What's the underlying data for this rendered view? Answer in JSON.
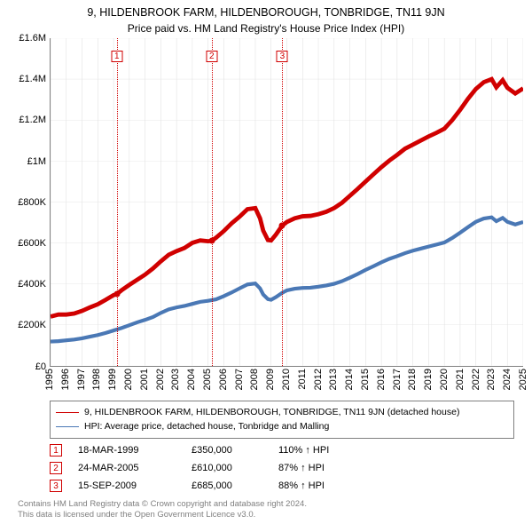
{
  "chart": {
    "title": "9, HILDENBROOK FARM, HILDENBOROUGH, TONBRIDGE, TN11 9JN",
    "subtitle": "Price paid vs. HM Land Registry's House Price Index (HPI)",
    "background_color": "#ffffff",
    "grid_color": "#e0e0e0",
    "axis_color": "#808080",
    "y": {
      "min": 0,
      "max": 1600000,
      "ticks": [
        {
          "v": 0,
          "label": "£0"
        },
        {
          "v": 200000,
          "label": "£200K"
        },
        {
          "v": 400000,
          "label": "£400K"
        },
        {
          "v": 600000,
          "label": "£600K"
        },
        {
          "v": 800000,
          "label": "£800K"
        },
        {
          "v": 1000000,
          "label": "£1M"
        },
        {
          "v": 1200000,
          "label": "£1.2M"
        },
        {
          "v": 1400000,
          "label": "£1.4M"
        },
        {
          "v": 1600000,
          "label": "£1.6M"
        }
      ]
    },
    "x": {
      "min": 1995,
      "max": 2025,
      "ticks": [
        1995,
        1996,
        1997,
        1998,
        1999,
        2000,
        2001,
        2002,
        2003,
        2004,
        2005,
        2006,
        2007,
        2008,
        2009,
        2010,
        2011,
        2012,
        2013,
        2014,
        2015,
        2016,
        2017,
        2018,
        2019,
        2020,
        2021,
        2022,
        2023,
        2024,
        2025
      ]
    },
    "series": [
      {
        "name": "9, HILDENBROOK FARM, HILDENBOROUGH, TONBRIDGE, TN11 9JN (detached house)",
        "color": "#d00000",
        "line_width": 1.5,
        "data": [
          [
            1995,
            240000
          ],
          [
            1995.5,
            250000
          ],
          [
            1996,
            250000
          ],
          [
            1996.5,
            255000
          ],
          [
            1997,
            268000
          ],
          [
            1997.5,
            285000
          ],
          [
            1998,
            300000
          ],
          [
            1998.5,
            322000
          ],
          [
            1999,
            345000
          ],
          [
            1999.21,
            350000
          ],
          [
            1999.5,
            368000
          ],
          [
            2000,
            395000
          ],
          [
            2000.5,
            420000
          ],
          [
            2001,
            445000
          ],
          [
            2001.5,
            475000
          ],
          [
            2002,
            510000
          ],
          [
            2002.5,
            542000
          ],
          [
            2003,
            560000
          ],
          [
            2003.5,
            575000
          ],
          [
            2004,
            600000
          ],
          [
            2004.5,
            612000
          ],
          [
            2005,
            608000
          ],
          [
            2005.23,
            610000
          ],
          [
            2005.5,
            625000
          ],
          [
            2006,
            658000
          ],
          [
            2006.5,
            696000
          ],
          [
            2007,
            728000
          ],
          [
            2007.5,
            765000
          ],
          [
            2008,
            770000
          ],
          [
            2008.3,
            720000
          ],
          [
            2008.5,
            660000
          ],
          [
            2008.8,
            614000
          ],
          [
            2009,
            612000
          ],
          [
            2009.3,
            640000
          ],
          [
            2009.71,
            685000
          ],
          [
            2010,
            702000
          ],
          [
            2010.5,
            720000
          ],
          [
            2011,
            730000
          ],
          [
            2011.5,
            732000
          ],
          [
            2012,
            740000
          ],
          [
            2012.5,
            752000
          ],
          [
            2013,
            770000
          ],
          [
            2013.5,
            796000
          ],
          [
            2014,
            830000
          ],
          [
            2014.5,
            864000
          ],
          [
            2015,
            900000
          ],
          [
            2015.5,
            935000
          ],
          [
            2016,
            970000
          ],
          [
            2016.5,
            1002000
          ],
          [
            2017,
            1030000
          ],
          [
            2017.5,
            1060000
          ],
          [
            2018,
            1080000
          ],
          [
            2018.5,
            1100000
          ],
          [
            2019,
            1120000
          ],
          [
            2019.5,
            1138000
          ],
          [
            2020,
            1158000
          ],
          [
            2020.5,
            1200000
          ],
          [
            2021,
            1250000
          ],
          [
            2021.5,
            1304000
          ],
          [
            2022,
            1352000
          ],
          [
            2022.5,
            1385000
          ],
          [
            2023,
            1400000
          ],
          [
            2023.3,
            1360000
          ],
          [
            2023.7,
            1395000
          ],
          [
            2024,
            1358000
          ],
          [
            2024.5,
            1330000
          ],
          [
            2025,
            1355000
          ]
        ]
      },
      {
        "name": "HPI: Average price, detached house, Tonbridge and Malling",
        "color": "#4a78b5",
        "line_width": 1.3,
        "data": [
          [
            1995,
            118000
          ],
          [
            1995.5,
            120000
          ],
          [
            1996,
            124000
          ],
          [
            1996.5,
            128000
          ],
          [
            1997,
            134000
          ],
          [
            1997.5,
            142000
          ],
          [
            1998,
            150000
          ],
          [
            1998.5,
            160000
          ],
          [
            1999,
            172000
          ],
          [
            1999.5,
            184000
          ],
          [
            2000,
            198000
          ],
          [
            2000.5,
            212000
          ],
          [
            2001,
            224000
          ],
          [
            2001.5,
            238000
          ],
          [
            2002,
            258000
          ],
          [
            2002.5,
            275000
          ],
          [
            2003,
            285000
          ],
          [
            2003.5,
            292000
          ],
          [
            2004,
            302000
          ],
          [
            2004.5,
            312000
          ],
          [
            2005,
            317000
          ],
          [
            2005.5,
            324000
          ],
          [
            2006,
            340000
          ],
          [
            2006.5,
            358000
          ],
          [
            2007,
            378000
          ],
          [
            2007.5,
            397000
          ],
          [
            2008,
            402000
          ],
          [
            2008.3,
            378000
          ],
          [
            2008.5,
            348000
          ],
          [
            2008.8,
            325000
          ],
          [
            2009,
            322000
          ],
          [
            2009.3,
            335000
          ],
          [
            2009.7,
            356000
          ],
          [
            2010,
            368000
          ],
          [
            2010.5,
            376000
          ],
          [
            2011,
            380000
          ],
          [
            2011.5,
            381000
          ],
          [
            2012,
            386000
          ],
          [
            2012.5,
            392000
          ],
          [
            2013,
            400000
          ],
          [
            2013.5,
            413000
          ],
          [
            2014,
            430000
          ],
          [
            2014.5,
            448000
          ],
          [
            2015,
            468000
          ],
          [
            2015.5,
            486000
          ],
          [
            2016,
            505000
          ],
          [
            2016.5,
            522000
          ],
          [
            2017,
            535000
          ],
          [
            2017.5,
            550000
          ],
          [
            2018,
            562000
          ],
          [
            2018.5,
            572000
          ],
          [
            2019,
            582000
          ],
          [
            2019.5,
            592000
          ],
          [
            2020,
            602000
          ],
          [
            2020.5,
            624000
          ],
          [
            2021,
            650000
          ],
          [
            2021.5,
            677000
          ],
          [
            2022,
            703000
          ],
          [
            2022.5,
            719000
          ],
          [
            2023,
            725000
          ],
          [
            2023.3,
            706000
          ],
          [
            2023.7,
            722000
          ],
          [
            2024,
            703000
          ],
          [
            2024.5,
            690000
          ],
          [
            2025,
            702000
          ]
        ]
      }
    ],
    "markers": [
      {
        "num": "1",
        "x": 1999.21,
        "y": 350000,
        "date": "18-MAR-1999",
        "price": "£350,000",
        "pct": "110% ↑ HPI"
      },
      {
        "num": "2",
        "x": 2005.23,
        "y": 610000,
        "date": "24-MAR-2005",
        "price": "£610,000",
        "pct": "87% ↑ HPI"
      },
      {
        "num": "3",
        "x": 2009.71,
        "y": 685000,
        "date": "15-SEP-2009",
        "price": "£685,000",
        "pct": "88% ↑ HPI"
      }
    ],
    "marker_box_top_y": 1540000
  },
  "footer": {
    "line1": "Contains HM Land Registry data © Crown copyright and database right 2024.",
    "line2": "This data is licensed under the Open Government Licence v3.0."
  }
}
